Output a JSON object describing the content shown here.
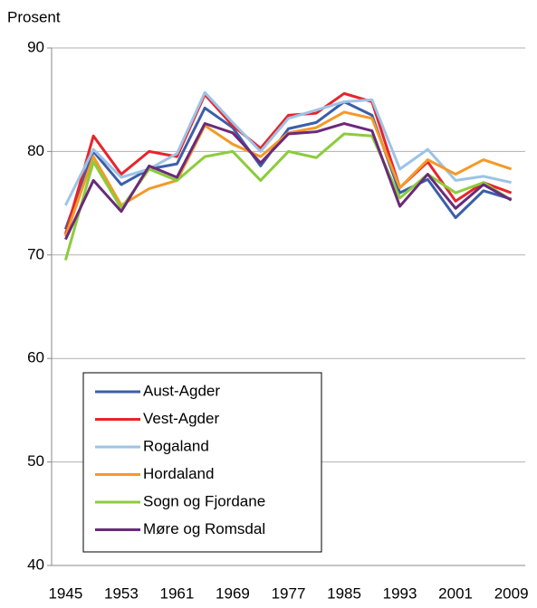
{
  "chart_data": {
    "type": "line",
    "y_label": "Prosent",
    "categories": [
      "1945",
      null,
      "1953",
      null,
      "1961",
      null,
      "1969",
      null,
      "1977",
      null,
      "1985",
      null,
      "1993",
      null,
      "2001",
      null,
      "2009"
    ],
    "series": [
      {
        "name": "Aust-Agder",
        "color": "#3b5fa8",
        "values": [
          72.5,
          80.0,
          76.8,
          78.3,
          78.8,
          84.2,
          82.3,
          78.6,
          82.2,
          82.8,
          84.8,
          83.5,
          76.0,
          77.3,
          73.6,
          76.2,
          75.4
        ]
      },
      {
        "name": "Vest-Agder",
        "color": "#e8242b",
        "values": [
          72.0,
          81.5,
          77.8,
          80.0,
          79.5,
          85.5,
          82.5,
          80.3,
          83.5,
          83.7,
          85.6,
          84.8,
          76.5,
          79.0,
          75.2,
          77.0,
          76.0
        ]
      },
      {
        "name": "Rogaland",
        "color": "#9dc3e6",
        "values": [
          74.8,
          80.2,
          77.5,
          78.3,
          79.8,
          85.7,
          82.8,
          80.0,
          83.2,
          84.0,
          84.8,
          85.0,
          78.3,
          80.2,
          77.2,
          77.6,
          77.0
        ]
      },
      {
        "name": "Hordaland",
        "color": "#f39a28",
        "values": [
          71.8,
          79.5,
          74.8,
          76.4,
          77.2,
          82.5,
          80.7,
          79.5,
          81.8,
          82.3,
          83.8,
          83.2,
          76.5,
          79.2,
          77.8,
          79.2,
          78.3
        ]
      },
      {
        "name": "Sogn og Fjordane",
        "color": "#8ccc3c",
        "values": [
          69.5,
          79.0,
          74.5,
          78.3,
          77.2,
          79.5,
          80.0,
          77.2,
          80.0,
          79.4,
          81.7,
          81.5,
          75.5,
          77.8,
          76.0,
          77.0,
          75.3
        ]
      },
      {
        "name": "Møre og Romsdal",
        "color": "#6a2a7a",
        "values": [
          71.5,
          77.2,
          74.2,
          78.6,
          77.5,
          82.7,
          81.8,
          78.9,
          81.7,
          81.9,
          82.7,
          82.0,
          74.7,
          77.8,
          74.5,
          76.8,
          75.3
        ]
      }
    ],
    "ylim": [
      40,
      90
    ],
    "yticks": [
      40,
      50,
      60,
      70,
      80,
      90
    ],
    "grid": true
  }
}
